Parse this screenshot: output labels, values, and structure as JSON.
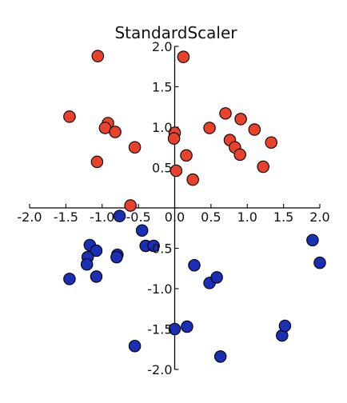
{
  "chart_data": {
    "type": "scatter",
    "title": "StandardScaler",
    "xlabel": "",
    "ylabel": "",
    "xlim": [
      -2.0,
      2.0
    ],
    "ylim": [
      -2.0,
      2.0
    ],
    "grid": false,
    "axes_style": "centered-spines",
    "x_ticks": [
      -2.0,
      -1.5,
      -1.0,
      -0.5,
      0.0,
      0.5,
      1.0,
      1.5,
      2.0
    ],
    "x_tick_labels": [
      "-2.0",
      "-1.5",
      "-1.0",
      "-0.5",
      "0.0",
      "0.5",
      "1.0",
      "1.5",
      "2.0"
    ],
    "y_ticks": [
      -2.0,
      -1.5,
      -1.0,
      -0.5,
      0.0,
      0.5,
      1.0,
      1.5,
      2.0
    ],
    "y_tick_labels": [
      "-2.0",
      "-1.5",
      "-1.0",
      "-0.5",
      "0.0",
      "0.5",
      "1.0",
      "1.5",
      "2.0"
    ],
    "series": [
      {
        "color": "#e8412c",
        "points": [
          [
            -1.06,
            1.88
          ],
          [
            0.12,
            1.87
          ],
          [
            -1.45,
            1.13
          ],
          [
            -0.92,
            1.05
          ],
          [
            -0.96,
            0.99
          ],
          [
            -0.82,
            0.94
          ],
          [
            0.0,
            0.93
          ],
          [
            -0.01,
            0.86
          ],
          [
            -0.55,
            0.75
          ],
          [
            0.48,
            0.99
          ],
          [
            0.7,
            1.17
          ],
          [
            0.91,
            1.1
          ],
          [
            1.1,
            0.97
          ],
          [
            1.33,
            0.81
          ],
          [
            0.76,
            0.84
          ],
          [
            0.83,
            0.75
          ],
          [
            0.9,
            0.66
          ],
          [
            1.22,
            0.51
          ],
          [
            -1.07,
            0.57
          ],
          [
            0.16,
            0.65
          ],
          [
            0.02,
            0.46
          ],
          [
            0.25,
            0.35
          ],
          [
            -0.61,
            0.03
          ]
        ]
      },
      {
        "color": "#1a2fb5",
        "points": [
          [
            -0.76,
            -0.1
          ],
          [
            -0.45,
            -0.28
          ],
          [
            -1.17,
            -0.46
          ],
          [
            -1.08,
            -0.53
          ],
          [
            -0.79,
            -0.58
          ],
          [
            -0.8,
            -0.61
          ],
          [
            -0.4,
            -0.47
          ],
          [
            -0.29,
            -0.47
          ],
          [
            -1.2,
            -0.61
          ],
          [
            -1.21,
            -0.7
          ],
          [
            -1.45,
            -0.88
          ],
          [
            -1.08,
            -0.85
          ],
          [
            0.27,
            -0.71
          ],
          [
            0.48,
            -0.93
          ],
          [
            0.58,
            -0.86
          ],
          [
            1.9,
            -0.4
          ],
          [
            2.0,
            -0.68
          ],
          [
            -0.55,
            -1.71
          ],
          [
            0.0,
            -1.5
          ],
          [
            0.17,
            -1.47
          ],
          [
            0.63,
            -1.84
          ],
          [
            1.48,
            -1.58
          ],
          [
            1.52,
            -1.46
          ]
        ]
      }
    ]
  }
}
